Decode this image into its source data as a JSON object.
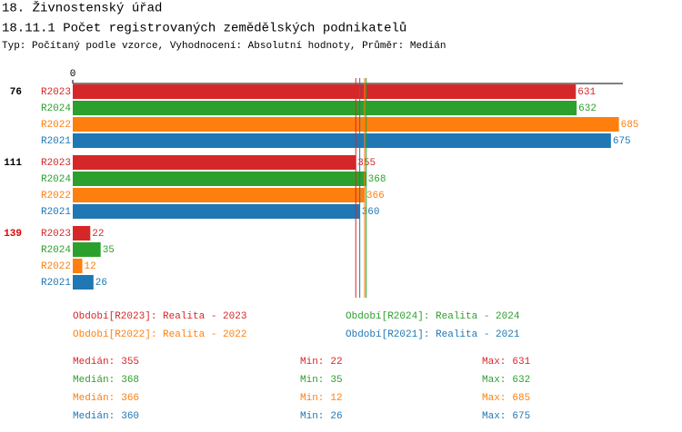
{
  "chart_data": {
    "type": "bar",
    "title": "18. Živnostenský úřad",
    "subtitle": "18.11.1 Počet registrovaných zemědělských podnikatelů",
    "description": "Typ: Počítaný podle vzorce, Vyhodnocení: Absolutní hodnoty, Průměr: Medián",
    "categories": [
      "76",
      "111",
      "139"
    ],
    "category_colors": [
      "#000000",
      "#000000",
      "#e00000"
    ],
    "xlim": [
      0,
      690
    ],
    "xticks": [
      0
    ],
    "stat_labels": {
      "median": "Medián:",
      "min": "Min:",
      "max": "Max:"
    },
    "series": [
      {
        "name": "R2023",
        "legend": "Období[R2023]: Realita - 2023",
        "color": "#d62728",
        "values": [
          631,
          355,
          22
        ],
        "median": 355,
        "min": 22,
        "max": 631
      },
      {
        "name": "R2024",
        "legend": "Období[R2024]: Realita - 2024",
        "color": "#2ca02c",
        "values": [
          632,
          368,
          35
        ],
        "median": 368,
        "min": 35,
        "max": 632
      },
      {
        "name": "R2022",
        "legend": "Období[R2022]: Realita - 2022",
        "color": "#ff7f0e",
        "values": [
          685,
          366,
          12
        ],
        "median": 366,
        "min": 12,
        "max": 685
      },
      {
        "name": "R2021",
        "legend": "Období[R2021]: Realita - 2021",
        "color": "#1f77b4",
        "values": [
          675,
          360,
          26
        ],
        "median": 360,
        "min": 26,
        "max": 675
      }
    ]
  }
}
